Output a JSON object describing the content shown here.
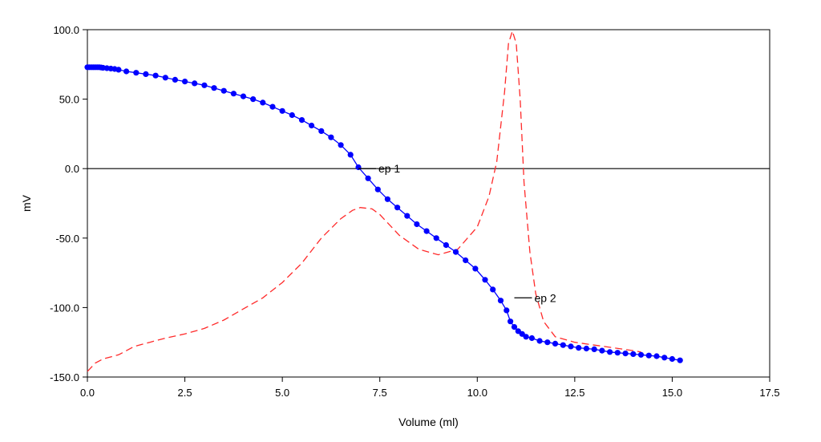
{
  "chart_data": {
    "type": "line",
    "title": "",
    "xlabel": "Volume (ml)",
    "ylabel": "mV",
    "xlim": [
      0,
      17.5
    ],
    "ylim": [
      -150,
      100
    ],
    "x_ticks": [
      "0.0",
      "2.5",
      "5.0",
      "7.5",
      "10.0",
      "12.5",
      "15.0",
      "17.5"
    ],
    "y_ticks": [
      "100.0",
      "50.0",
      "0.0",
      "-50.0",
      "-100.0",
      "-150.0"
    ],
    "zero_line": true,
    "grid": false,
    "colors": {
      "titration": "#0000ff",
      "derivative": "#ff2a2a",
      "axis": "#000000"
    },
    "series": [
      {
        "style": "solid-markers",
        "x": [
          0.0,
          0.05,
          0.1,
          0.15,
          0.2,
          0.25,
          0.3,
          0.35,
          0.4,
          0.5,
          0.6,
          0.7,
          0.8,
          1.0,
          1.25,
          1.5,
          1.75,
          2.0,
          2.25,
          2.5,
          2.75,
          3.0,
          3.25,
          3.5,
          3.75,
          4.0,
          4.25,
          4.5,
          4.75,
          5.0,
          5.25,
          5.5,
          5.75,
          6.0,
          6.25,
          6.5,
          6.75,
          6.95,
          7.2,
          7.45,
          7.7,
          7.95,
          8.2,
          8.45,
          8.7,
          8.95,
          9.2,
          9.45,
          9.7,
          9.95,
          10.2,
          10.4,
          10.6,
          10.75,
          10.85,
          10.95,
          11.05,
          11.15,
          11.25,
          11.4,
          11.6,
          11.8,
          12.0,
          12.2,
          12.4,
          12.6,
          12.8,
          13.0,
          13.2,
          13.4,
          13.6,
          13.8,
          14.0,
          14.2,
          14.4,
          14.6,
          14.8,
          15.0,
          15.2
        ],
        "y": [
          73,
          73,
          73,
          73,
          73,
          73,
          73,
          72.8,
          72.6,
          72.3,
          72,
          71.7,
          71.2,
          70,
          69,
          68,
          67,
          65.5,
          64,
          62.7,
          61.4,
          60,
          58,
          56,
          54,
          52,
          50,
          47.5,
          44.5,
          41.5,
          38.5,
          35,
          31,
          27,
          22.5,
          17,
          10,
          1,
          -7,
          -15,
          -22,
          -28,
          -34,
          -40,
          -45,
          -50,
          -55,
          -60,
          -66,
          -72,
          -80,
          -87,
          -95,
          -102,
          -110,
          -114,
          -117,
          -119,
          -121,
          -122,
          -124,
          -125,
          -126,
          -127,
          -128,
          -129,
          -129.5,
          -130,
          -131,
          -132,
          -132.5,
          -133,
          -133.5,
          -134,
          -134.5,
          -135,
          -136,
          -137,
          -138
        ]
      },
      {
        "style": "dashed",
        "x": [
          0.0,
          0.2,
          0.4,
          0.8,
          1.2,
          1.6,
          2.0,
          2.5,
          3.0,
          3.5,
          4.0,
          4.5,
          5.0,
          5.5,
          6.0,
          6.5,
          6.8,
          7.0,
          7.3,
          7.5,
          8.0,
          8.5,
          9.0,
          9.5,
          10.0,
          10.3,
          10.5,
          10.7,
          10.8,
          10.9,
          11.0,
          11.1,
          11.2,
          11.35,
          11.5,
          11.7,
          12.0,
          12.5,
          13.0,
          13.5,
          14.0,
          14.2
        ],
        "y": [
          -146,
          -140,
          -137,
          -134,
          -128,
          -125,
          -122,
          -119,
          -115,
          -109,
          -101,
          -93,
          -82,
          -68,
          -50,
          -36,
          -30,
          -28,
          -29,
          -33,
          -48,
          -58,
          -62,
          -58,
          -42,
          -20,
          5,
          55,
          90,
          99,
          90,
          50,
          -10,
          -60,
          -90,
          -110,
          -121,
          -125,
          -127,
          -129,
          -131,
          -132
        ]
      }
    ],
    "annotations": [
      {
        "label": "ep 1",
        "x": 6.95,
        "y": 0
      },
      {
        "label": "ep 2",
        "x": 10.95,
        "y": -93
      }
    ]
  }
}
